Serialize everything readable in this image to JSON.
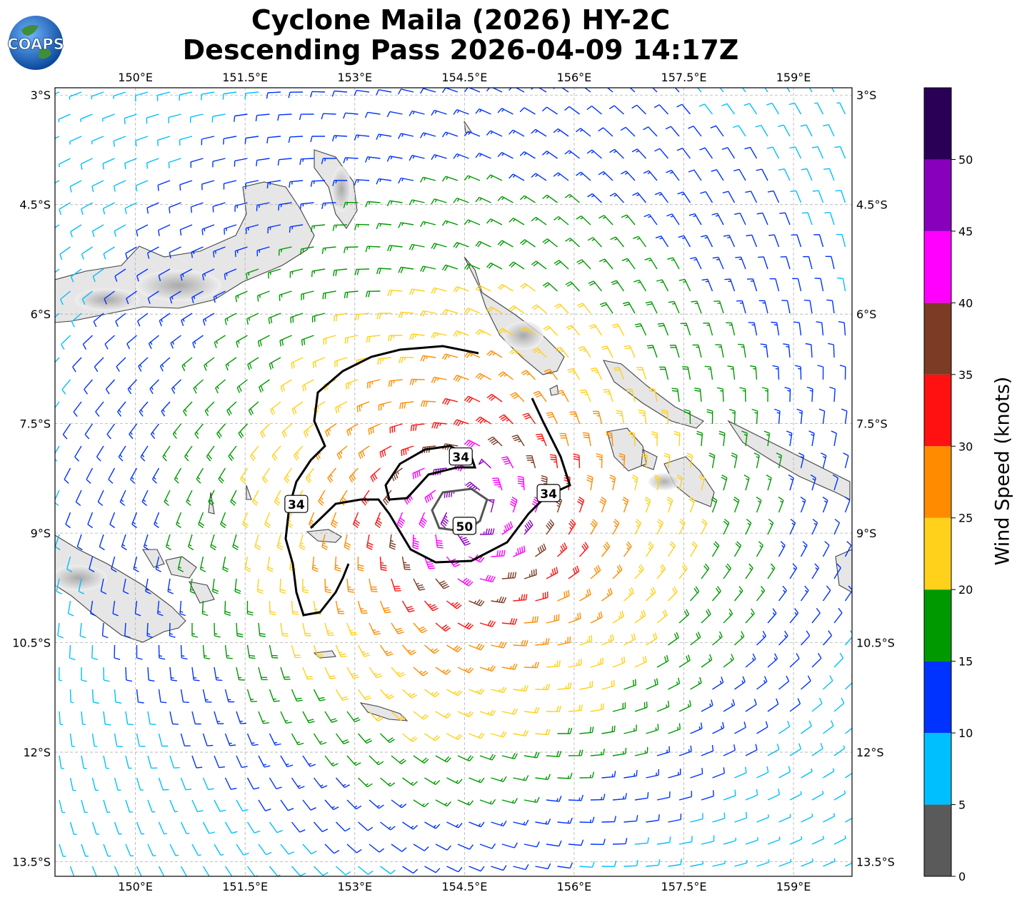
{
  "title_line1": "Cyclone Maila (2026) HY-2C",
  "title_line2": "Descending Pass 2026-04-09 14:17Z",
  "logo_text": "COAPS",
  "map": {
    "lon_range": [
      148.9,
      159.8
    ],
    "lat_range": [
      -13.7,
      -2.9
    ],
    "lon_ticks": [
      {
        "value": 150.0,
        "label": "150°E"
      },
      {
        "value": 151.5,
        "label": "151.5°E"
      },
      {
        "value": 153.0,
        "label": "153°E"
      },
      {
        "value": 154.5,
        "label": "154.5°E"
      },
      {
        "value": 156.0,
        "label": "156°E"
      },
      {
        "value": 157.5,
        "label": "157.5°E"
      },
      {
        "value": 159.0,
        "label": "159°E"
      }
    ],
    "lat_ticks": [
      {
        "value": -3.0,
        "label": "3°S"
      },
      {
        "value": -4.5,
        "label": "4.5°S"
      },
      {
        "value": -6.0,
        "label": "6°S"
      },
      {
        "value": -7.5,
        "label": "7.5°S"
      },
      {
        "value": -9.0,
        "label": "9°S"
      },
      {
        "value": -10.5,
        "label": "10.5°S"
      },
      {
        "value": -12.0,
        "label": "12°S"
      },
      {
        "value": -13.5,
        "label": "13.5°S"
      }
    ],
    "gridlines": true,
    "storm_center": {
      "lon": 154.6,
      "lat": -8.75
    },
    "contour_labels": [
      {
        "text": "34",
        "lon": 154.45,
        "lat": -7.95
      },
      {
        "text": "34",
        "lon": 152.2,
        "lat": -8.6
      },
      {
        "text": "34",
        "lon": 155.65,
        "lat": -8.45
      },
      {
        "text": "50",
        "lon": 154.5,
        "lat": -8.9
      }
    ],
    "land_labels": []
  },
  "colorbar": {
    "label": "Wind Speed (knots)",
    "ticks": [
      "0",
      "5",
      "10",
      "15",
      "20",
      "25",
      "30",
      "35",
      "40",
      "45",
      "50"
    ],
    "bins": [
      {
        "from": 0,
        "to": 5,
        "color": "#5a5a5a"
      },
      {
        "from": 5,
        "to": 10,
        "color": "#00bfff"
      },
      {
        "from": 10,
        "to": 15,
        "color": "#0033ff"
      },
      {
        "from": 15,
        "to": 20,
        "color": "#009900"
      },
      {
        "from": 20,
        "to": 25,
        "color": "#ffd11a"
      },
      {
        "from": 25,
        "to": 30,
        "color": "#ff8c00"
      },
      {
        "from": 30,
        "to": 35,
        "color": "#ff1111"
      },
      {
        "from": 35,
        "to": 40,
        "color": "#7b3b24"
      },
      {
        "from": 40,
        "to": 45,
        "color": "#ff00ff"
      },
      {
        "from": 45,
        "to": 50,
        "color": "#8800bb"
      },
      {
        "from": 50,
        "to": 55,
        "color": "#2a0057"
      }
    ]
  }
}
